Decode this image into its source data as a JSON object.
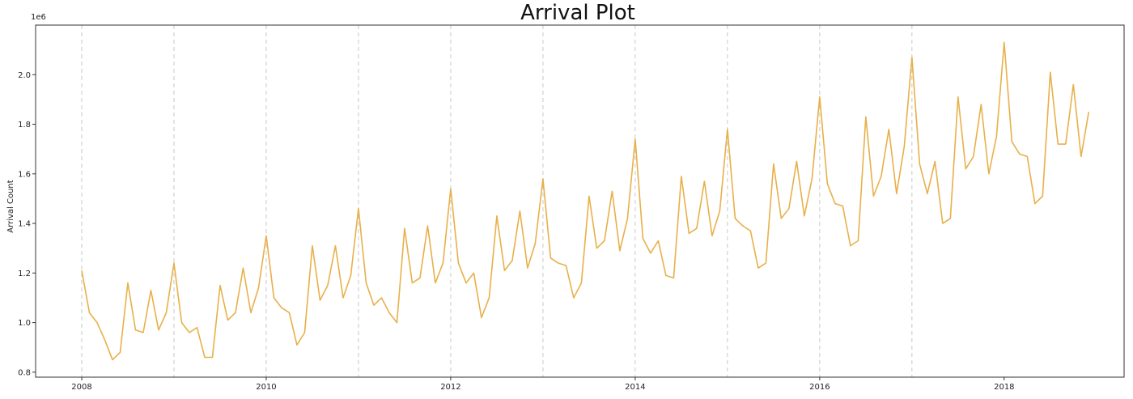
{
  "chart_data": {
    "type": "line",
    "title": "Arrival Plot",
    "xlabel": "",
    "ylabel": "Arrival Count",
    "y_offset_label": "1e6",
    "xlim": [
      2007.5,
      2019.3
    ],
    "ylim": [
      0.78,
      2.2
    ],
    "x_ticks": [
      2008,
      2010,
      2012,
      2014,
      2016,
      2018
    ],
    "y_ticks": [
      0.8,
      1.0,
      1.2,
      1.4,
      1.6,
      1.8,
      2.0
    ],
    "vlines": [
      2008,
      2009,
      2010,
      2011,
      2012,
      2013,
      2014,
      2015,
      2016,
      2017
    ],
    "grid": false,
    "line_color": "#e8b04a",
    "vline_color": "#c8c8c8",
    "start_year": 2008,
    "values": [
      1.21,
      1.04,
      1.0,
      0.93,
      0.85,
      0.88,
      1.16,
      0.97,
      0.96,
      1.13,
      0.97,
      1.04,
      1.24,
      1.0,
      0.96,
      0.98,
      0.86,
      0.86,
      1.15,
      1.01,
      1.04,
      1.22,
      1.04,
      1.14,
      1.35,
      1.1,
      1.06,
      1.04,
      0.91,
      0.96,
      1.31,
      1.09,
      1.15,
      1.31,
      1.1,
      1.19,
      1.46,
      1.16,
      1.07,
      1.1,
      1.04,
      1.0,
      1.38,
      1.16,
      1.18,
      1.39,
      1.16,
      1.24,
      1.54,
      1.24,
      1.16,
      1.2,
      1.02,
      1.1,
      1.43,
      1.21,
      1.25,
      1.45,
      1.22,
      1.32,
      1.58,
      1.26,
      1.24,
      1.23,
      1.1,
      1.16,
      1.51,
      1.3,
      1.33,
      1.53,
      1.29,
      1.42,
      1.74,
      1.34,
      1.28,
      1.33,
      1.19,
      1.18,
      1.59,
      1.36,
      1.38,
      1.57,
      1.35,
      1.45,
      1.78,
      1.42,
      1.39,
      1.37,
      1.22,
      1.24,
      1.64,
      1.42,
      1.46,
      1.65,
      1.43,
      1.58,
      1.91,
      1.56,
      1.48,
      1.47,
      1.31,
      1.33,
      1.83,
      1.51,
      1.59,
      1.78,
      1.52,
      1.71,
      2.07,
      1.64,
      1.52,
      1.65,
      1.4,
      1.42,
      1.91,
      1.62,
      1.67,
      1.88,
      1.6,
      1.75,
      2.13,
      1.73,
      1.68,
      1.67,
      1.48,
      1.51,
      2.01,
      1.72,
      1.72,
      1.96,
      1.67,
      1.85
    ]
  }
}
